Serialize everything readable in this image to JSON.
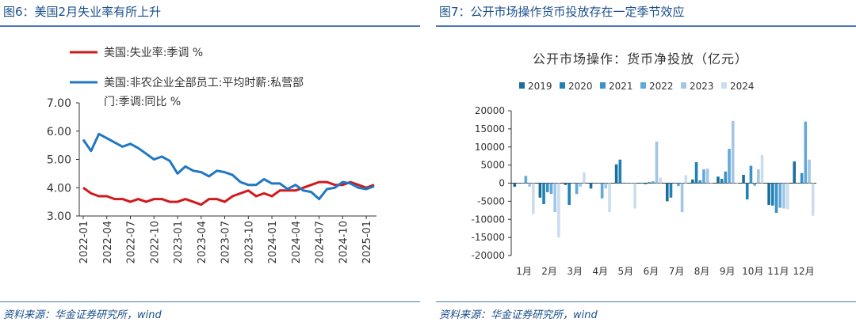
{
  "left": {
    "figure_title": "图6：美国2月失业率有所上升",
    "source": "资料来源：华金证券研究所，wind"
  },
  "right": {
    "figure_title": "图7：公开市场操作货币投放存在一定季节效应",
    "source": "资料来源：华金证券研究所，wind"
  },
  "chart_data": [
    {
      "type": "line",
      "title": "",
      "legend_placement": "top",
      "ylim": [
        3.0,
        7.0
      ],
      "yticks": [
        "3.00",
        "4.00",
        "5.00",
        "6.00",
        "7.00"
      ],
      "xticks": [
        "2022-01",
        "2022-04",
        "2022-07",
        "2022-10",
        "2023-01",
        "2023-04",
        "2023-07",
        "2023-10",
        "2024-01",
        "2024-04",
        "2024-07",
        "2024-10",
        "2025-01"
      ],
      "x": [
        "2022-01",
        "2022-02",
        "2022-03",
        "2022-04",
        "2022-05",
        "2022-06",
        "2022-07",
        "2022-08",
        "2022-09",
        "2022-10",
        "2022-11",
        "2022-12",
        "2023-01",
        "2023-02",
        "2023-03",
        "2023-04",
        "2023-05",
        "2023-06",
        "2023-07",
        "2023-08",
        "2023-09",
        "2023-10",
        "2023-11",
        "2023-12",
        "2024-01",
        "2024-02",
        "2024-03",
        "2024-04",
        "2024-05",
        "2024-06",
        "2024-07",
        "2024-08",
        "2024-09",
        "2024-10",
        "2024-11",
        "2024-12",
        "2025-01",
        "2025-02"
      ],
      "series": [
        {
          "name": "美国:失业率:季调 %",
          "color": "#d0191c",
          "values": [
            4.0,
            3.8,
            3.7,
            3.7,
            3.6,
            3.6,
            3.5,
            3.6,
            3.5,
            3.6,
            3.6,
            3.5,
            3.5,
            3.6,
            3.5,
            3.4,
            3.6,
            3.6,
            3.5,
            3.7,
            3.8,
            3.9,
            3.7,
            3.8,
            3.7,
            3.9,
            3.9,
            3.9,
            4.0,
            4.1,
            4.2,
            4.2,
            4.1,
            4.1,
            4.2,
            4.1,
            4.0,
            4.1
          ]
        },
        {
          "name": "美国:非农企业全部员工:平均时薪:私营部门:季调:同比 %",
          "color": "#1f77c4",
          "values": [
            5.7,
            5.3,
            5.9,
            5.75,
            5.6,
            5.45,
            5.55,
            5.4,
            5.2,
            5.0,
            5.1,
            4.95,
            4.5,
            4.75,
            4.6,
            4.55,
            4.4,
            4.6,
            4.55,
            4.45,
            4.2,
            4.1,
            4.1,
            4.3,
            4.15,
            4.15,
            3.95,
            4.1,
            3.9,
            3.85,
            3.6,
            3.95,
            4.0,
            4.2,
            4.15,
            4.0,
            3.95,
            4.05
          ]
        }
      ]
    },
    {
      "type": "bar",
      "title": "公开市场操作：货币净投放（亿元）",
      "legend_placement": "top",
      "ylim": [
        -20000,
        20000
      ],
      "yticks": [
        "-20000",
        "-15000",
        "-10000",
        "-5000",
        "0",
        "5000",
        "10000",
        "15000",
        "20000"
      ],
      "categories": [
        "1月",
        "2月",
        "3月",
        "4月",
        "5月",
        "6月",
        "7月",
        "8月",
        "9月",
        "10月",
        "11月",
        "12月"
      ],
      "series": [
        {
          "name": "2019",
          "color": "#1a6f9a",
          "values": [
            -1000,
            -4000,
            -500,
            -1500,
            5200,
            0,
            -5000,
            1000,
            1800,
            2300,
            -6000,
            6000
          ]
        },
        {
          "name": "2020",
          "color": "#1f82b5",
          "values": [
            0,
            -5800,
            -6000,
            0,
            6500,
            -300,
            -4000,
            5800,
            1200,
            -4500,
            -6200,
            0
          ]
        },
        {
          "name": "2021",
          "color": "#3a92c9",
          "values": [
            0,
            -2500,
            0,
            0,
            0,
            300,
            0,
            800,
            3200,
            4800,
            -8200,
            2800
          ]
        },
        {
          "name": "2022",
          "color": "#62a8d9",
          "values": [
            2000,
            -3000,
            -3000,
            -4200,
            0,
            500,
            -800,
            3800,
            9500,
            -700,
            -6800,
            17000
          ]
        },
        {
          "name": "2023",
          "color": "#a3c6e4",
          "values": [
            -1000,
            -8000,
            -1000,
            -1500,
            0,
            11500,
            -8000,
            4000,
            17200,
            3800,
            -7000,
            6500
          ]
        },
        {
          "name": "2024",
          "color": "#c9ddef",
          "values": [
            -8500,
            -15000,
            3000,
            -8000,
            -7000,
            1500,
            2200,
            0,
            0,
            7800,
            -7200,
            -9000
          ]
        }
      ]
    }
  ]
}
